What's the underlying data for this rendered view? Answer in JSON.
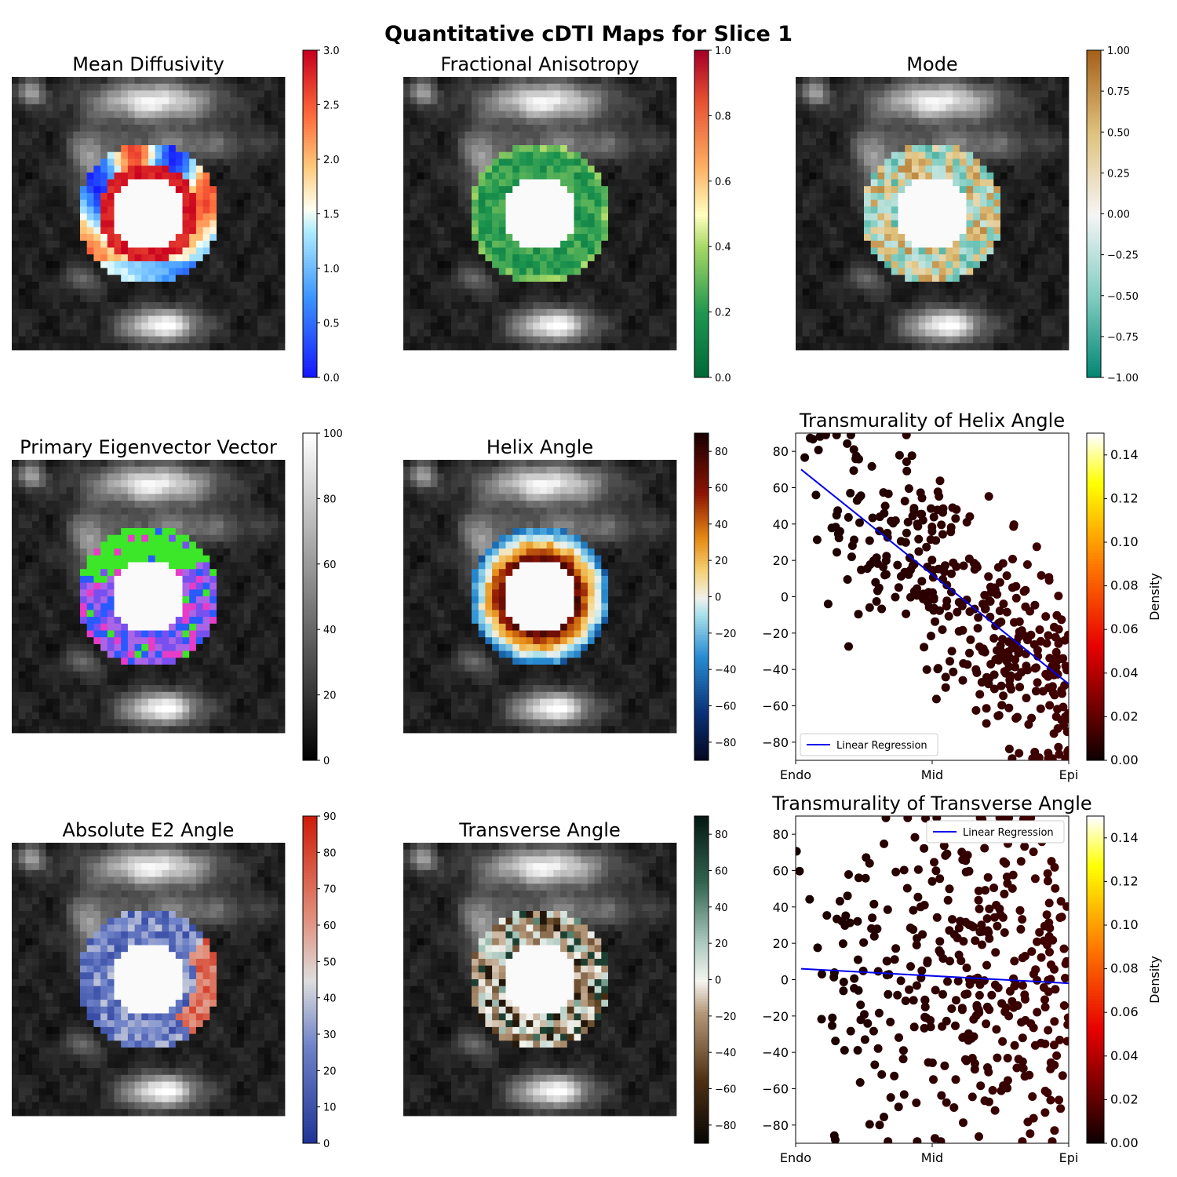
{
  "figure": {
    "suptitle": "Quantitative cDTI Maps for Slice 1"
  },
  "chart_data": [
    {
      "type": "heatmap",
      "title": "Mean Diffusivity",
      "colormap": "bwr-like (blue-white-red)",
      "colorbar": {
        "min": 0.0,
        "max": 3.0,
        "ticks": [
          "0.0",
          "0.5",
          "1.0",
          "1.5",
          "2.0",
          "2.5",
          "3.0"
        ]
      },
      "grid": false
    },
    {
      "type": "heatmap",
      "title": "Fractional Anisotropy",
      "colormap": "green-yellow-red",
      "colorbar": {
        "min": 0.0,
        "max": 1.0,
        "ticks": [
          "0.0",
          "0.2",
          "0.4",
          "0.6",
          "0.8",
          "1.0"
        ]
      },
      "grid": false
    },
    {
      "type": "heatmap",
      "title": "Mode",
      "colormap": "teal-white-brown",
      "colorbar": {
        "min": -1.0,
        "max": 1.0,
        "ticks": [
          "−1.00",
          "−0.75",
          "−0.50",
          "−0.25",
          "0.00",
          "0.25",
          "0.50",
          "0.75",
          "1.00"
        ]
      },
      "grid": false
    },
    {
      "type": "heatmap",
      "title": "Primary Eigenvector Vector",
      "colormap": "gray",
      "colorbar": {
        "min": 0,
        "max": 100,
        "ticks": [
          "0",
          "20",
          "40",
          "60",
          "80",
          "100"
        ]
      },
      "grid": false
    },
    {
      "type": "heatmap",
      "title": "Helix Angle",
      "colormap": "dark blue-cyan-white-orange-dark red",
      "colorbar": {
        "min": -90,
        "max": 90,
        "ticks": [
          "−80",
          "−60",
          "−40",
          "−20",
          "0",
          "20",
          "40",
          "60",
          "80"
        ]
      },
      "grid": false
    },
    {
      "type": "scatter",
      "title": "Transmurality of Helix Angle",
      "x_ticks": [
        "Endo",
        "Mid",
        "Epi"
      ],
      "y_ticks": [
        "−80",
        "−60",
        "−40",
        "−20",
        "0",
        "20",
        "40",
        "60",
        "80"
      ],
      "xlim": [
        0,
        1
      ],
      "ylim": [
        -90,
        90
      ],
      "regression": {
        "label": "Linear Regression",
        "start": [
          0.02,
          70
        ],
        "end": [
          1.0,
          -48
        ]
      },
      "legend_position": "lower-left",
      "colorbar": {
        "label": "Density",
        "min": 0.0,
        "max": 0.15,
        "ticks": [
          "0.00",
          "0.02",
          "0.04",
          "0.06",
          "0.08",
          "0.10",
          "0.12",
          "0.14"
        ]
      },
      "trend": {
        "slope": -120,
        "intercept": 72,
        "spread": 30
      },
      "point_count": 380
    },
    {
      "type": "heatmap",
      "title": "Absolute E2 Angle",
      "colormap": "coolwarm",
      "colorbar": {
        "min": 0,
        "max": 90,
        "ticks": [
          "0",
          "10",
          "20",
          "30",
          "40",
          "50",
          "60",
          "70",
          "80",
          "90"
        ]
      },
      "grid": false
    },
    {
      "type": "heatmap",
      "title": "Transverse Angle",
      "colormap": "brown-white-teal",
      "colorbar": {
        "min": -90,
        "max": 90,
        "ticks": [
          "−80",
          "−60",
          "−40",
          "−20",
          "0",
          "20",
          "40",
          "60",
          "80"
        ]
      },
      "grid": false
    },
    {
      "type": "scatter",
      "title": "Transmurality of Transverse Angle",
      "x_ticks": [
        "Endo",
        "Mid",
        "Epi"
      ],
      "y_ticks": [
        "−80",
        "−60",
        "−40",
        "−20",
        "0",
        "20",
        "40",
        "60",
        "80"
      ],
      "xlim": [
        0,
        1
      ],
      "ylim": [
        -90,
        90
      ],
      "regression": {
        "label": "Linear Regression",
        "start": [
          0.02,
          6
        ],
        "end": [
          1.0,
          -2
        ]
      },
      "legend_position": "upper-right",
      "colorbar": {
        "label": "Density",
        "min": 0.0,
        "max": 0.15,
        "ticks": [
          "0.00",
          "0.02",
          "0.04",
          "0.06",
          "0.08",
          "0.10",
          "0.12",
          "0.14"
        ]
      },
      "trend": {
        "slope": -8,
        "intercept": 6,
        "spread": 45
      },
      "point_count": 380
    }
  ]
}
